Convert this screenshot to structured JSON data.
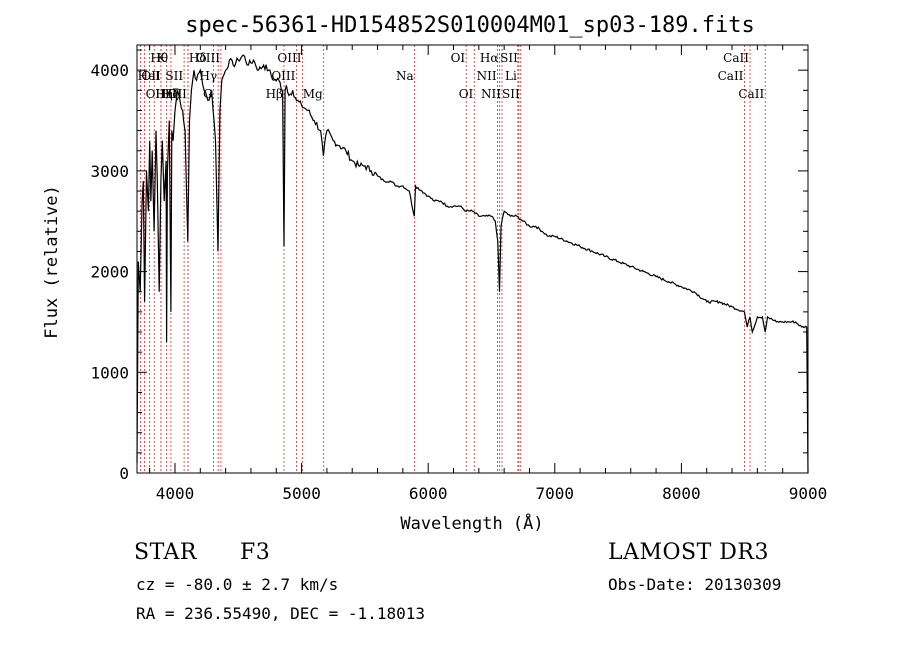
{
  "chart_data": {
    "type": "line",
    "title": "spec-56361-HD154852S010004M01_sp03-189.fits",
    "xlabel": "Wavelength (Å)",
    "ylabel": "Flux (relative)",
    "xlim": [
      3700,
      9000
    ],
    "ylim": [
      0,
      4250
    ],
    "xticks": [
      4000,
      5000,
      6000,
      7000,
      8000,
      9000
    ],
    "yticks": [
      0,
      1000,
      2000,
      3000,
      4000
    ],
    "series": [
      {
        "name": "spectrum",
        "x": [
          3700,
          3710,
          3725,
          3740,
          3750,
          3760,
          3775,
          3790,
          3800,
          3810,
          3820,
          3835,
          3850,
          3860,
          3875,
          3889,
          3900,
          3915,
          3930,
          3934,
          3940,
          3955,
          3968,
          3975,
          3985,
          4000,
          4020,
          4040,
          4060,
          4080,
          4101,
          4115,
          4130,
          4150,
          4170,
          4200,
          4230,
          4260,
          4290,
          4320,
          4340,
          4355,
          4370,
          4400,
          4430,
          4460,
          4500,
          4540,
          4580,
          4620,
          4660,
          4700,
          4740,
          4780,
          4820,
          4850,
          4861,
          4870,
          4880,
          4900,
          4930,
          4960,
          5000,
          5050,
          5100,
          5150,
          5172,
          5200,
          5250,
          5300,
          5350,
          5400,
          5450,
          5500,
          5550,
          5600,
          5650,
          5700,
          5750,
          5800,
          5850,
          5890,
          5900,
          5950,
          6000,
          6050,
          6100,
          6150,
          6200,
          6250,
          6300,
          6350,
          6400,
          6450,
          6500,
          6530,
          6550,
          6563,
          6575,
          6600,
          6650,
          6700,
          6750,
          6800,
          6850,
          6900,
          6950,
          7000,
          7100,
          7200,
          7300,
          7400,
          7500,
          7600,
          7700,
          7800,
          7900,
          8000,
          8100,
          8200,
          8300,
          8400,
          8498,
          8520,
          8542,
          8560,
          8600,
          8640,
          8662,
          8680,
          8750,
          8800,
          8850,
          8900,
          8950,
          8990,
          9000
        ],
        "values": [
          100,
          2100,
          1800,
          2700,
          2900,
          1700,
          3000,
          2600,
          3300,
          2700,
          3200,
          2400,
          3400,
          2900,
          1800,
          2900,
          3300,
          2700,
          3100,
          1300,
          3000,
          3500,
          1600,
          3400,
          3300,
          3600,
          3800,
          3700,
          3600,
          3400,
          2300,
          3500,
          3800,
          4000,
          3900,
          4000,
          3800,
          3700,
          3800,
          3300,
          2200,
          3600,
          3900,
          4000,
          4100,
          4050,
          4100,
          4150,
          4050,
          4100,
          4000,
          4050,
          4000,
          3900,
          3900,
          3800,
          2250,
          3800,
          3850,
          3750,
          3800,
          3700,
          3650,
          3600,
          3500,
          3400,
          3150,
          3400,
          3300,
          3250,
          3200,
          3100,
          3050,
          3050,
          3000,
          2950,
          2900,
          2900,
          2850,
          2850,
          2800,
          2550,
          2850,
          2800,
          2750,
          2700,
          2700,
          2650,
          2650,
          2650,
          2600,
          2600,
          2550,
          2550,
          2550,
          2500,
          2300,
          1800,
          2450,
          2600,
          2550,
          2550,
          2500,
          2450,
          2450,
          2400,
          2350,
          2350,
          2300,
          2250,
          2200,
          2150,
          2100,
          2050,
          2000,
          1950,
          1900,
          1850,
          1800,
          1700,
          1700,
          1650,
          1600,
          1450,
          1550,
          1400,
          1550,
          1550,
          1400,
          1550,
          1500,
          1500,
          1500,
          1500,
          1450,
          1450,
          0
        ]
      }
    ],
    "line_markers": [
      {
        "label": "Hθ",
        "x": 3798,
        "row": 1,
        "side": "right"
      },
      {
        "label": "OII",
        "x": 3727,
        "row": 2,
        "side": "right"
      },
      {
        "label": "OIII",
        "x": 3760,
        "row": 3,
        "side": "right"
      },
      {
        "label": "Hη",
        "x": 3836,
        "row": 3,
        "side": "right"
      },
      {
        "label": "HeI",
        "x": 3889,
        "row": 2,
        "side": "left"
      },
      {
        "label": "Hζ",
        "x": 3889,
        "row": 3,
        "side": "right"
      },
      {
        "label": "K",
        "x": 3934,
        "row": 1,
        "side": "left"
      },
      {
        "label": "H",
        "x": 3968,
        "row": 3,
        "side": "right"
      },
      {
        "label": "SII",
        "x": 4072,
        "row": 2,
        "side": "left"
      },
      {
        "label": "Hδ",
        "x": 4102,
        "row": 1,
        "side": "right"
      },
      {
        "label": "OII",
        "x": 4102,
        "row": 3,
        "side": "left"
      },
      {
        "label": "OIII",
        "x": 4363,
        "row": 1,
        "side": "left"
      },
      {
        "label": "Hγ",
        "x": 4341,
        "row": 2,
        "side": "left"
      },
      {
        "label": "G",
        "x": 4305,
        "row": 3,
        "side": "left"
      },
      {
        "label": "Hβ",
        "x": 4861,
        "row": 3,
        "side": "left"
      },
      {
        "label": "OIII",
        "x": 4959,
        "row": 2,
        "side": "left"
      },
      {
        "label": "OIII",
        "x": 5007,
        "row": 1,
        "side": "left"
      },
      {
        "label": "Mg",
        "x": 5175,
        "row": 3,
        "side": "left"
      },
      {
        "label": "Na",
        "x": 5893,
        "row": 2,
        "side": "left"
      },
      {
        "label": "OI",
        "x": 6300,
        "row": 1,
        "side": "left"
      },
      {
        "label": "OI",
        "x": 6364,
        "row": 3,
        "side": "left"
      },
      {
        "label": "NII",
        "x": 6548,
        "row": 2,
        "side": "left"
      },
      {
        "label": "Hα",
        "x": 6563,
        "row": 1,
        "side": "left"
      },
      {
        "label": "NII",
        "x": 6583,
        "row": 3,
        "side": "left"
      },
      {
        "label": "Li",
        "x": 6708,
        "row": 2,
        "side": "left"
      },
      {
        "label": "SII",
        "x": 6716,
        "row": 1,
        "side": "left"
      },
      {
        "label": "SII",
        "x": 6731,
        "row": 3,
        "side": "left"
      },
      {
        "label": "CaII",
        "x": 8498,
        "row": 2,
        "side": "left"
      },
      {
        "label": "CaII",
        "x": 8542,
        "row": 1,
        "side": "left"
      },
      {
        "label": "CaII",
        "x": 8662,
        "row": 3,
        "side": "left"
      }
    ]
  },
  "info": {
    "object_class": "STAR",
    "subclass": "F3",
    "survey": "LAMOST DR3",
    "redshift": "cz = -80.0 ± 2.7 km/s",
    "obs_date": "Obs-Date: 20130309",
    "coords": "RA = 236.55490, DEC =  -1.18013"
  },
  "colors": {
    "axis": "#000000",
    "spectrum": "#000000",
    "marker": "#cc3333"
  }
}
